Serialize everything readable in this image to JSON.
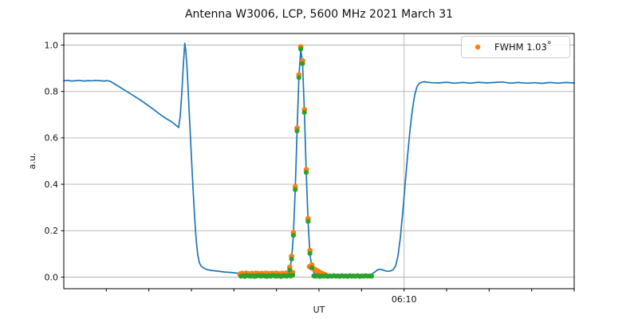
{
  "colors": {
    "line": "#1f77b4",
    "fit": "#ff7f0e",
    "data": "#2ca02c",
    "grid": "#b0b0b0",
    "spine": "#000000",
    "legend_border": "#cccccc"
  },
  "legend": {
    "label": "FWHM 1.03",
    "degree": "°",
    "marker_color": "#ff7f0e",
    "position": "upper right"
  },
  "chart_data": {
    "type": "line",
    "title": "Antenna W3006, LCP, 5600 MHz 2021 March 31",
    "xlabel": "UT",
    "ylabel": "a.u.",
    "xlim": [
      0,
      1
    ],
    "ylim": [
      -0.05,
      1.05
    ],
    "grid": true,
    "legend_position": "upper right",
    "yticks": [
      0.0,
      0.2,
      0.4,
      0.6,
      0.8,
      1.0
    ],
    "ytick_labels": [
      "0.0",
      "0.2",
      "0.4",
      "0.6",
      "0.8",
      "1.0"
    ],
    "xticks": [
      {
        "pos": 0.0833,
        "label": ""
      },
      {
        "pos": 0.1667,
        "label": ""
      },
      {
        "pos": 0.25,
        "label": ""
      },
      {
        "pos": 0.3333,
        "label": ""
      },
      {
        "pos": 0.4167,
        "label": ""
      },
      {
        "pos": 0.5,
        "label": ""
      },
      {
        "pos": 0.5833,
        "label": ""
      },
      {
        "pos": 0.6667,
        "label": "06:10",
        "grid": true
      },
      {
        "pos": 0.75,
        "label": ""
      },
      {
        "pos": 0.8333,
        "label": ""
      },
      {
        "pos": 0.9167,
        "label": ""
      },
      {
        "pos": 1.0,
        "label": ""
      }
    ],
    "series": [
      {
        "name": "signal",
        "kind": "line",
        "color": "#1f77b4",
        "width": 1.7,
        "points": [
          [
            0,
            0.846
          ],
          [
            0.0078,
            0.848
          ],
          [
            0.0156,
            0.845
          ],
          [
            0.0234,
            0.847
          ],
          [
            0.0313,
            0.848
          ],
          [
            0.0391,
            0.845
          ],
          [
            0.0469,
            0.847
          ],
          [
            0.0547,
            0.846
          ],
          [
            0.0625,
            0.848
          ],
          [
            0.0703,
            0.847
          ],
          [
            0.0781,
            0.845
          ],
          [
            0.0844,
            0.847
          ],
          [
            0.0906,
            0.844
          ],
          [
            0.1016,
            0.83
          ],
          [
            0.1125,
            0.815
          ],
          [
            0.125,
            0.798
          ],
          [
            0.1375,
            0.781
          ],
          [
            0.15,
            0.763
          ],
          [
            0.1625,
            0.744
          ],
          [
            0.175,
            0.724
          ],
          [
            0.1875,
            0.703
          ],
          [
            0.2,
            0.684
          ],
          [
            0.2109,
            0.67
          ],
          [
            0.2188,
            0.656
          ],
          [
            0.225,
            0.645
          ],
          [
            0.2281,
            0.695
          ],
          [
            0.2313,
            0.795
          ],
          [
            0.2344,
            0.92
          ],
          [
            0.237,
            1.008
          ],
          [
            0.2391,
            0.975
          ],
          [
            0.2414,
            0.905
          ],
          [
            0.2438,
            0.8
          ],
          [
            0.2469,
            0.66
          ],
          [
            0.25,
            0.52
          ],
          [
            0.2531,
            0.385
          ],
          [
            0.2563,
            0.26
          ],
          [
            0.2594,
            0.16
          ],
          [
            0.2625,
            0.095
          ],
          [
            0.2656,
            0.062
          ],
          [
            0.2688,
            0.048
          ],
          [
            0.2734,
            0.04
          ],
          [
            0.2781,
            0.034
          ],
          [
            0.2875,
            0.029
          ],
          [
            0.3,
            0.026
          ],
          [
            0.3156,
            0.022
          ],
          [
            0.3313,
            0.019
          ],
          [
            0.3469,
            0.015
          ],
          [
            0.3672,
            0.011
          ],
          [
            0.3906,
            0.009
          ],
          [
            0.4141,
            0.01
          ],
          [
            0.4297,
            0.013
          ],
          [
            0.4375,
            0.02
          ],
          [
            0.4427,
            0.03
          ],
          [
            0.4463,
            0.078
          ],
          [
            0.4498,
            0.18
          ],
          [
            0.4534,
            0.377
          ],
          [
            0.457,
            0.63
          ],
          [
            0.4606,
            0.86
          ],
          [
            0.4642,
            0.983
          ],
          [
            0.4678,
            0.92
          ],
          [
            0.4714,
            0.71
          ],
          [
            0.475,
            0.451
          ],
          [
            0.4786,
            0.24
          ],
          [
            0.4822,
            0.102
          ],
          [
            0.4859,
            0.04
          ],
          [
            0.4906,
            0.016
          ],
          [
            0.4969,
            0.009
          ],
          [
            0.5078,
            0.006
          ],
          [
            0.5234,
            0.005
          ],
          [
            0.5422,
            0.005
          ],
          [
            0.5625,
            0.005
          ],
          [
            0.5813,
            0.006
          ],
          [
            0.5953,
            0.008
          ],
          [
            0.6031,
            0.012
          ],
          [
            0.6094,
            0.022
          ],
          [
            0.6141,
            0.03
          ],
          [
            0.6188,
            0.034
          ],
          [
            0.6234,
            0.032
          ],
          [
            0.6281,
            0.028
          ],
          [
            0.6344,
            0.025
          ],
          [
            0.6406,
            0.027
          ],
          [
            0.6453,
            0.032
          ],
          [
            0.65,
            0.048
          ],
          [
            0.6547,
            0.09
          ],
          [
            0.6594,
            0.17
          ],
          [
            0.6641,
            0.28
          ],
          [
            0.6688,
            0.4
          ],
          [
            0.6734,
            0.52
          ],
          [
            0.6781,
            0.63
          ],
          [
            0.6828,
            0.72
          ],
          [
            0.6875,
            0.785
          ],
          [
            0.6922,
            0.822
          ],
          [
            0.6969,
            0.836
          ],
          [
            0.7016,
            0.84
          ],
          [
            0.7063,
            0.842
          ],
          [
            0.7125,
            0.84
          ],
          [
            0.7203,
            0.838
          ],
          [
            0.7344,
            0.837
          ],
          [
            0.75,
            0.84
          ],
          [
            0.7656,
            0.836
          ],
          [
            0.7813,
            0.839
          ],
          [
            0.7969,
            0.836
          ],
          [
            0.8125,
            0.84
          ],
          [
            0.8281,
            0.837
          ],
          [
            0.8438,
            0.839
          ],
          [
            0.8594,
            0.841
          ],
          [
            0.875,
            0.836
          ],
          [
            0.8906,
            0.839
          ],
          [
            0.9063,
            0.836
          ],
          [
            0.9219,
            0.838
          ],
          [
            0.9375,
            0.835
          ],
          [
            0.9531,
            0.839
          ],
          [
            0.9688,
            0.836
          ],
          [
            0.9844,
            0.839
          ],
          [
            1,
            0.837
          ]
        ]
      },
      {
        "name": "fit",
        "kind": "scatter",
        "color": "#ff7f0e",
        "size": 3.4,
        "points": [
          [
            0.3453,
            0.013
          ],
          [
            0.3492,
            0.016
          ],
          [
            0.3531,
            0.014
          ],
          [
            0.357,
            0.017
          ],
          [
            0.3609,
            0.015
          ],
          [
            0.3648,
            0.013
          ],
          [
            0.3688,
            0.016
          ],
          [
            0.3727,
            0.014
          ],
          [
            0.3766,
            0.017
          ],
          [
            0.3805,
            0.015
          ],
          [
            0.3844,
            0.014
          ],
          [
            0.3883,
            0.016
          ],
          [
            0.3922,
            0.013
          ],
          [
            0.3961,
            0.017
          ],
          [
            0.4,
            0.015
          ],
          [
            0.4039,
            0.014
          ],
          [
            0.4078,
            0.016
          ],
          [
            0.4117,
            0.014
          ],
          [
            0.4156,
            0.017
          ],
          [
            0.4195,
            0.015
          ],
          [
            0.4234,
            0.013
          ],
          [
            0.4273,
            0.016
          ],
          [
            0.4313,
            0.014
          ],
          [
            0.4352,
            0.017
          ],
          [
            0.4391,
            0.015
          ],
          [
            0.443,
            0.016
          ],
          [
            0.4469,
            0.018
          ],
          [
            0.4484,
            0.02
          ],
          [
            0.4427,
            0.042
          ],
          [
            0.4463,
            0.09
          ],
          [
            0.4498,
            0.192
          ],
          [
            0.4534,
            0.389
          ],
          [
            0.457,
            0.642
          ],
          [
            0.4606,
            0.872
          ],
          [
            0.4642,
            0.993
          ],
          [
            0.4678,
            0.932
          ],
          [
            0.4714,
            0.722
          ],
          [
            0.475,
            0.463
          ],
          [
            0.4786,
            0.252
          ],
          [
            0.4822,
            0.114
          ],
          [
            0.4859,
            0.052
          ],
          [
            0.4813,
            0.045
          ],
          [
            0.4844,
            0.042
          ],
          [
            0.4875,
            0.038
          ],
          [
            0.4906,
            0.034
          ],
          [
            0.4938,
            0.03
          ],
          [
            0.4969,
            0.026
          ],
          [
            0.5,
            0.022
          ],
          [
            0.5031,
            0.018
          ],
          [
            0.5063,
            0.015
          ],
          [
            0.5094,
            0.012
          ],
          [
            0.5125,
            0.01
          ]
        ]
      },
      {
        "name": "data",
        "kind": "scatter",
        "color": "#2ca02c",
        "size": 3.1,
        "points": [
          [
            0.3469,
            0.004
          ],
          [
            0.3508,
            0.006
          ],
          [
            0.3547,
            0.003
          ],
          [
            0.3586,
            0.007
          ],
          [
            0.3625,
            0.005
          ],
          [
            0.3664,
            0.004
          ],
          [
            0.3703,
            0.006
          ],
          [
            0.3742,
            0.003
          ],
          [
            0.3781,
            0.005
          ],
          [
            0.382,
            0.007
          ],
          [
            0.3859,
            0.004
          ],
          [
            0.3898,
            0.006
          ],
          [
            0.3938,
            0.005
          ],
          [
            0.3977,
            0.003
          ],
          [
            0.4016,
            0.006
          ],
          [
            0.4055,
            0.004
          ],
          [
            0.4094,
            0.007
          ],
          [
            0.4133,
            0.005
          ],
          [
            0.4172,
            0.004
          ],
          [
            0.4211,
            0.006
          ],
          [
            0.425,
            0.003
          ],
          [
            0.4289,
            0.005
          ],
          [
            0.4328,
            0.006
          ],
          [
            0.4367,
            0.004
          ],
          [
            0.4406,
            0.007
          ],
          [
            0.4445,
            0.005
          ],
          [
            0.4484,
            0.008
          ],
          [
            0.4427,
            0.03
          ],
          [
            0.4463,
            0.078
          ],
          [
            0.4498,
            0.18
          ],
          [
            0.4534,
            0.377
          ],
          [
            0.457,
            0.63
          ],
          [
            0.4606,
            0.86
          ],
          [
            0.4642,
            0.983
          ],
          [
            0.4678,
            0.92
          ],
          [
            0.4714,
            0.71
          ],
          [
            0.475,
            0.451
          ],
          [
            0.4786,
            0.24
          ],
          [
            0.4822,
            0.102
          ],
          [
            0.4859,
            0.04
          ],
          [
            0.4898,
            0.005
          ],
          [
            0.4938,
            0.004
          ],
          [
            0.4977,
            0.006
          ],
          [
            0.5016,
            0.003
          ],
          [
            0.5055,
            0.005
          ],
          [
            0.5094,
            0.004
          ],
          [
            0.5133,
            0.006
          ],
          [
            0.5172,
            0.003
          ],
          [
            0.5211,
            0.005
          ],
          [
            0.525,
            0.004
          ],
          [
            0.5289,
            0.006
          ],
          [
            0.5328,
            0.004
          ],
          [
            0.5367,
            0.005
          ],
          [
            0.5406,
            0.003
          ],
          [
            0.5445,
            0.006
          ],
          [
            0.5484,
            0.004
          ],
          [
            0.5523,
            0.005
          ],
          [
            0.5563,
            0.003
          ],
          [
            0.5602,
            0.006
          ],
          [
            0.5641,
            0.004
          ],
          [
            0.568,
            0.005
          ],
          [
            0.5719,
            0.004
          ],
          [
            0.5758,
            0.006
          ],
          [
            0.5797,
            0.003
          ],
          [
            0.5836,
            0.005
          ],
          [
            0.5875,
            0.004
          ],
          [
            0.5914,
            0.006
          ],
          [
            0.5953,
            0.004
          ],
          [
            0.5992,
            0.005
          ],
          [
            0.6031,
            0.004
          ]
        ]
      }
    ]
  }
}
